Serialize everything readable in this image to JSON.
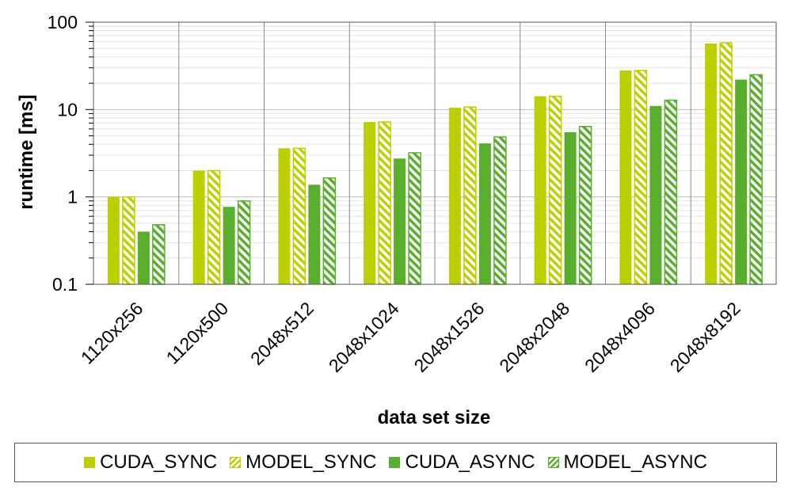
{
  "colors": {
    "sync": "#bccf00",
    "async": "#5aae2e"
  },
  "chart_data": {
    "type": "bar",
    "title": "",
    "xlabel": "data set size",
    "ylabel": "runtime [ms]",
    "yscale": "log",
    "ylim": [
      0.1,
      100
    ],
    "yticks": [
      "0.1",
      "1",
      "10",
      "100"
    ],
    "grid": true,
    "legend_position": "bottom",
    "categories": [
      "1120x256",
      "1120x500",
      "2048x512",
      "2048x1024",
      "2048x1526",
      "2048x2048",
      "2048x4096",
      "2048x8192"
    ],
    "series": [
      {
        "name": "CUDA_SYNC",
        "pattern": "solid",
        "color": "#bccf00",
        "values": [
          1.0,
          2.0,
          3.6,
          7.2,
          10.5,
          14.2,
          28.0,
          57.0
        ]
      },
      {
        "name": "MODEL_SYNC",
        "pattern": "hatched",
        "color": "#bccf00",
        "values": [
          1.0,
          2.0,
          3.6,
          7.2,
          10.7,
          14.2,
          28.0,
          58.0
        ]
      },
      {
        "name": "CUDA_ASYNC",
        "pattern": "solid",
        "color": "#5aae2e",
        "values": [
          0.4,
          0.77,
          1.38,
          2.75,
          4.1,
          5.5,
          11.0,
          22.0
        ]
      },
      {
        "name": "MODEL_ASYNC",
        "pattern": "hatched",
        "color": "#5aae2e",
        "values": [
          0.48,
          0.9,
          1.65,
          3.2,
          4.85,
          6.4,
          12.8,
          25.0
        ]
      }
    ]
  }
}
